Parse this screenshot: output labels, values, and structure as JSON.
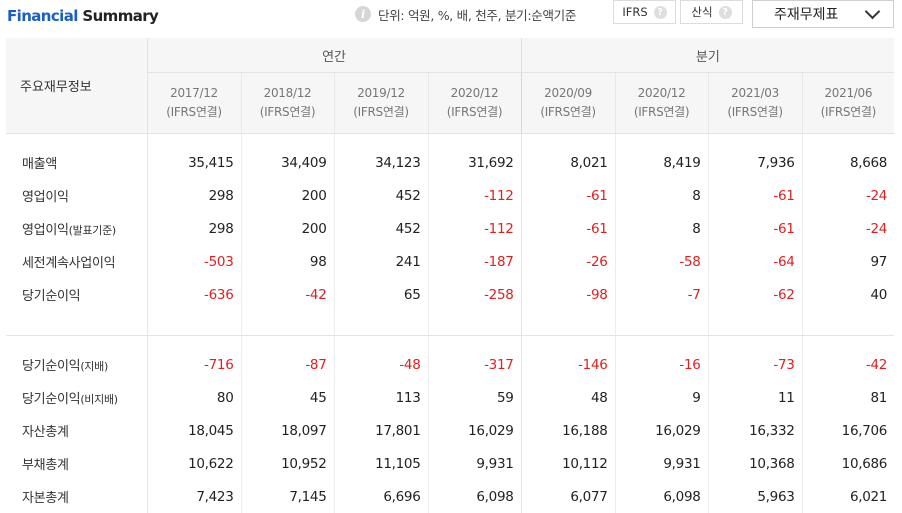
{
  "header": {
    "title_part1": "Financial",
    "title_part2": "Summary",
    "unit_text": "단위: 억원, %, 배, 천주, 분기:순액기준",
    "ifrs_label": "IFRS",
    "calc_label": "산식",
    "help_glyph": "?",
    "info_glyph": "i",
    "select_label": "주재무제표"
  },
  "table": {
    "corner_label": "주요재무정보",
    "group_annual": "연간",
    "group_quarter": "분기",
    "periods": [
      {
        "date": "2017/12",
        "basis": "(IFRS연결)"
      },
      {
        "date": "2018/12",
        "basis": "(IFRS연결)"
      },
      {
        "date": "2019/12",
        "basis": "(IFRS연결)"
      },
      {
        "date": "2020/12",
        "basis": "(IFRS연결)"
      },
      {
        "date": "2020/09",
        "basis": "(IFRS연결)"
      },
      {
        "date": "2020/12",
        "basis": "(IFRS연결)"
      },
      {
        "date": "2021/03",
        "basis": "(IFRS연결)"
      },
      {
        "date": "2021/06",
        "basis": "(IFRS연결)"
      }
    ],
    "section1": [
      {
        "label": "매출액",
        "suffix": "",
        "values": [
          "35,415",
          "34,409",
          "34,123",
          "31,692",
          "8,021",
          "8,419",
          "7,936",
          "8,668"
        ]
      },
      {
        "label": "영업이익",
        "suffix": "",
        "values": [
          "298",
          "200",
          "452",
          "-112",
          "-61",
          "8",
          "-61",
          "-24"
        ]
      },
      {
        "label": "영업이익",
        "suffix": "(발표기준)",
        "values": [
          "298",
          "200",
          "452",
          "-112",
          "-61",
          "8",
          "-61",
          "-24"
        ]
      },
      {
        "label": "세전계속사업이익",
        "suffix": "",
        "values": [
          "-503",
          "98",
          "241",
          "-187",
          "-26",
          "-58",
          "-64",
          "97"
        ]
      },
      {
        "label": "당기순이익",
        "suffix": "",
        "values": [
          "-636",
          "-42",
          "65",
          "-258",
          "-98",
          "-7",
          "-62",
          "40"
        ]
      }
    ],
    "section2": [
      {
        "label": "당기순이익",
        "suffix": "(지배)",
        "values": [
          "-716",
          "-87",
          "-48",
          "-317",
          "-146",
          "-16",
          "-73",
          "-42"
        ]
      },
      {
        "label": "당기순이익",
        "suffix": "(비지배)",
        "values": [
          "80",
          "45",
          "113",
          "59",
          "48",
          "9",
          "11",
          "81"
        ]
      },
      {
        "label": "자산총계",
        "suffix": "",
        "values": [
          "18,045",
          "18,097",
          "17,801",
          "16,029",
          "16,188",
          "16,029",
          "16,332",
          "16,706"
        ]
      },
      {
        "label": "부채총계",
        "suffix": "",
        "values": [
          "10,622",
          "10,952",
          "11,105",
          "9,931",
          "10,112",
          "9,931",
          "10,368",
          "10,686"
        ]
      },
      {
        "label": "자본총계",
        "suffix": "",
        "values": [
          "7,423",
          "7,145",
          "6,696",
          "6,098",
          "6,077",
          "6,098",
          "5,963",
          "6,021"
        ]
      }
    ]
  },
  "colors": {
    "accent_blue": "#1a5fc8",
    "negative_red": "#e02020",
    "header_bg": "#f6f6f6"
  }
}
